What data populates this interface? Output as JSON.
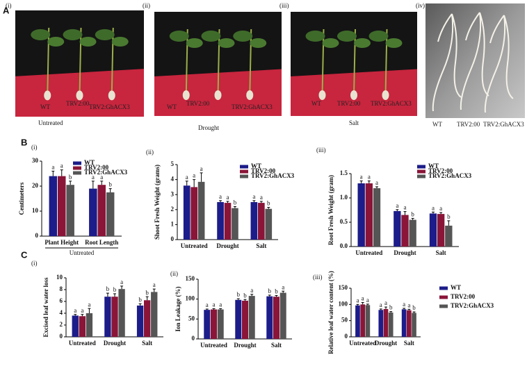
{
  "panels": {
    "a": "A",
    "b": "B",
    "c": "C"
  },
  "photos": [
    {
      "label": "(i)",
      "caption": "Untreated",
      "tags": [
        "WT",
        "TRV2:00",
        "TRV2:GhACX3"
      ]
    },
    {
      "label": "(ii)",
      "caption": "Drought",
      "tags": [
        "WT",
        "TRV2:00",
        "TRV2:GhACX3"
      ]
    },
    {
      "label": "(iii)",
      "caption": "Salt",
      "tags": [
        "WT",
        "TRV2:00",
        "TRV2:GhACX3"
      ]
    },
    {
      "label": "(iv)",
      "tags": [
        "WT",
        "TRV2:00",
        "TRV2:GhACX3"
      ]
    }
  ],
  "chart_data": [
    {
      "type": "bar",
      "label": "(i)",
      "ylabel": "Centimeters",
      "group_label": "Untreated",
      "categories": [
        "Plant Height",
        "Root Length"
      ],
      "ylim": [
        0,
        30
      ],
      "yticks": [
        0,
        10,
        20,
        30
      ],
      "legend": true,
      "series": [
        {
          "name": "WT",
          "color": "#1c1c8a",
          "values": [
            24,
            19
          ],
          "errors": [
            2,
            3
          ],
          "letters": [
            "a",
            "a"
          ]
        },
        {
          "name": "TRV2:00",
          "color": "#8a1538",
          "values": [
            24,
            20.5
          ],
          "errors": [
            2.5,
            1.5
          ],
          "letters": [
            "a",
            "a"
          ]
        },
        {
          "name": "TRV2:GhACX3",
          "color": "#555555",
          "values": [
            20.5,
            17.5
          ],
          "errors": [
            1.5,
            1.5
          ],
          "letters": [
            "b",
            "b"
          ]
        }
      ]
    },
    {
      "type": "bar",
      "label": "(ii)",
      "ylabel": "Shoot Fresh Weight (grams)",
      "categories": [
        "Untreated",
        "Drought",
        "Salt"
      ],
      "ylim": [
        0,
        5
      ],
      "yticks": [
        0,
        1,
        2,
        3,
        4,
        5
      ],
      "legend": true,
      "series": [
        {
          "name": "WT",
          "color": "#1c1c8a",
          "values": [
            3.6,
            2.5,
            2.5
          ],
          "errors": [
            0.3,
            0.1,
            0.1
          ],
          "letters": [
            "a",
            "a",
            "a"
          ]
        },
        {
          "name": "TRV2:00",
          "color": "#8a1538",
          "values": [
            3.5,
            2.45,
            2.45
          ],
          "errors": [
            0.5,
            0.1,
            0.1
          ],
          "letters": [
            "a",
            "a",
            "a"
          ]
        },
        {
          "name": "TRV2:GhACX3",
          "color": "#555555",
          "values": [
            3.85,
            2.1,
            2.05
          ],
          "errors": [
            0.6,
            0.1,
            0.1
          ],
          "letters": [
            "a",
            "b",
            "b"
          ]
        }
      ]
    },
    {
      "type": "bar",
      "label": "(iii)",
      "ylabel": "Root Fresh Weight (gram)",
      "categories": [
        "Untreated",
        "Drought",
        "Salt"
      ],
      "ylim": [
        0,
        1.5
      ],
      "yticks": [
        {
          "value": 0,
          "label": "0.0"
        },
        {
          "value": 0.5,
          "label": "0.5"
        },
        {
          "value": 1,
          "label": "1.0"
        },
        {
          "value": 1.5,
          "label": "1.5"
        }
      ],
      "legend": true,
      "series": [
        {
          "name": "WT",
          "color": "#1c1c8a",
          "values": [
            1.3,
            0.73,
            0.68
          ],
          "errors": [
            0.05,
            0.03,
            0.03
          ],
          "letters": [
            "a",
            "a",
            "a"
          ]
        },
        {
          "name": "TRV2:00",
          "color": "#8a1538",
          "values": [
            1.3,
            0.65,
            0.67
          ],
          "errors": [
            0.05,
            0.07,
            0.03
          ],
          "letters": [
            "a",
            "a",
            "a"
          ]
        },
        {
          "name": "TRV2:GhACX3",
          "color": "#555555",
          "values": [
            1.2,
            0.55,
            0.43
          ],
          "errors": [
            0.03,
            0.03,
            0.1
          ],
          "letters": [
            "a",
            "b",
            "b"
          ]
        }
      ]
    },
    {
      "type": "bar",
      "label": "(i)",
      "ylabel": "Excised leaf water loss",
      "categories": [
        "Untreated",
        "Drought",
        "Salt"
      ],
      "ylim": [
        0,
        10
      ],
      "yticks": [
        0,
        2,
        4,
        6,
        8,
        10
      ],
      "legend": false,
      "series": [
        {
          "name": "WT",
          "color": "#1c1c8a",
          "values": [
            3.6,
            6.8,
            5.3
          ],
          "errors": [
            0.2,
            0.6,
            0.3
          ],
          "letters": [
            "a",
            "b",
            "b"
          ]
        },
        {
          "name": "TRV2:00",
          "color": "#8a1538",
          "values": [
            3.5,
            6.8,
            6.2
          ],
          "errors": [
            0.3,
            0.5,
            0.6
          ],
          "letters": [
            "a",
            "b",
            "b"
          ]
        },
        {
          "name": "TRV2:GhACX3",
          "color": "#555555",
          "values": [
            4,
            8.1,
            7.6
          ],
          "errors": [
            0.8,
            0.5,
            0.5
          ],
          "letters": [
            "a",
            "a",
            "a"
          ]
        }
      ]
    },
    {
      "type": "bar",
      "label": "(ii)",
      "ylabel": "Ion Leakage (%)",
      "categories": [
        "Untreated",
        "Drought",
        "Salt"
      ],
      "ylim": [
        0,
        150
      ],
      "yticks": [
        0,
        50,
        100,
        150
      ],
      "legend": false,
      "series": [
        {
          "name": "WT",
          "color": "#1c1c8a",
          "values": [
            73,
            98,
            107
          ],
          "errors": [
            2,
            3,
            3
          ],
          "letters": [
            "a",
            "b",
            "b"
          ]
        },
        {
          "name": "TRV2:00",
          "color": "#8a1538",
          "values": [
            74,
            96,
            106
          ],
          "errors": [
            2,
            3,
            3
          ],
          "letters": [
            "a",
            "b",
            "b"
          ]
        },
        {
          "name": "TRV2:GhACX3",
          "color": "#555555",
          "values": [
            74,
            108,
            116
          ],
          "errors": [
            2,
            4,
            4
          ],
          "letters": [
            "a",
            "a",
            "a"
          ]
        }
      ]
    },
    {
      "type": "bar",
      "label": "(iii)",
      "ylabel": "Relative leaf water content (%)",
      "categories": [
        "Untreated",
        "Drought",
        "Salt"
      ],
      "ylim": [
        0,
        150
      ],
      "yticks": [
        0,
        50,
        100,
        150
      ],
      "legend": true,
      "series": [
        {
          "name": "WT",
          "color": "#1c1c8a",
          "values": [
            97,
            83,
            85
          ],
          "errors": [
            3,
            3,
            3
          ],
          "letters": [
            "a",
            "a",
            "a"
          ]
        },
        {
          "name": "TRV2:00",
          "color": "#8a1538",
          "values": [
            100,
            86,
            82
          ],
          "errors": [
            6,
            6,
            3
          ],
          "letters": [
            "a",
            "a",
            "a"
          ]
        },
        {
          "name": "TRV2:GhACX3",
          "color": "#555555",
          "values": [
            98,
            75,
            74
          ],
          "errors": [
            3,
            3,
            3
          ],
          "letters": [
            "a",
            "b",
            "b"
          ]
        }
      ]
    }
  ]
}
